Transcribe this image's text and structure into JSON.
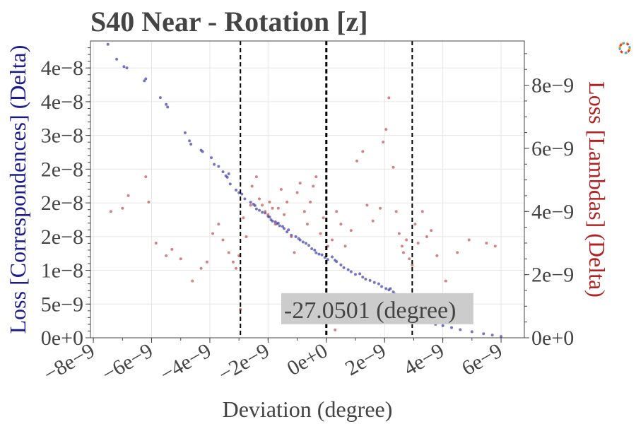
{
  "chart_data": {
    "type": "scatter",
    "title": "S40 Near - Rotation [z]",
    "xlabel": "Deviation (degree)",
    "ylabel_left": "Loss [Correspondences] (Delta)",
    "ylabel_right": "Loss [Lambdas] (Delta)",
    "xlim": [
      -8.1e-09,
      6.8e-09
    ],
    "ylim_left": [
      0,
      4.4e-08
    ],
    "ylim_right": [
      0,
      9.4e-09
    ],
    "x_tick_values": [
      -8e-09,
      -6e-09,
      -4e-09,
      -2e-09,
      0,
      2e-09,
      4e-09,
      6e-09
    ],
    "x_tick_labels": [
      "−8e−9",
      "−6e−9",
      "−4e−9",
      "−2e−9",
      "0e+0",
      "2e−9",
      "4e−9",
      "6e−9"
    ],
    "y_left_tick_values": [
      0,
      5e-09,
      1e-08,
      1.5e-08,
      2e-08,
      2.5e-08,
      3e-08,
      3.5e-08,
      4e-08
    ],
    "y_left_tick_labels": [
      "0e+0",
      "5e−9",
      "1e−8",
      "2e−8",
      "2e−8",
      "2e−8",
      "3e−8",
      "4e−8",
      "4e−8"
    ],
    "y_right_tick_values": [
      0,
      2e-09,
      4e-09,
      6e-09,
      8e-09
    ],
    "y_right_tick_labels": [
      "0e+0",
      "2e−9",
      "4e−9",
      "6e−9",
      "8e−9"
    ],
    "vlines": [
      {
        "x": -2.95e-09,
        "style": "dashed"
      },
      {
        "x": 0,
        "style": "dashed-bold"
      },
      {
        "x": 2.95e-09,
        "style": "dashed"
      }
    ],
    "annotation": {
      "text": "-27.0501 (degree)",
      "x": 1.75e-09,
      "y": 4e-09
    },
    "grid": true,
    "series": [
      {
        "axis": "left",
        "color": "#3a3aa8",
        "points": [
          [
            -7.5,
            43.5
          ],
          [
            -7.2,
            41.3
          ],
          [
            -6.95,
            40.2
          ],
          [
            -6.85,
            40.0
          ],
          [
            -6.25,
            38.1
          ],
          [
            -6.2,
            38.4
          ],
          [
            -5.7,
            35.6
          ],
          [
            -5.5,
            34.6
          ],
          [
            -5.45,
            34.2
          ],
          [
            -4.85,
            30.4
          ],
          [
            -4.7,
            29.2
          ],
          [
            -4.65,
            28.7
          ],
          [
            -4.3,
            27.8
          ],
          [
            -4.25,
            27.6
          ],
          [
            -3.95,
            26.7
          ],
          [
            -3.85,
            25.7
          ],
          [
            -3.7,
            25.4
          ],
          [
            -3.55,
            24.6
          ],
          [
            -3.45,
            24.0
          ],
          [
            -3.4,
            23.8
          ],
          [
            -3.35,
            24.3
          ],
          [
            -3.3,
            22.8
          ],
          [
            -3.1,
            21.9
          ],
          [
            -3.0,
            21.5
          ],
          [
            -2.9,
            21.3
          ],
          [
            -2.8,
            20.6
          ],
          [
            -2.6,
            20.1
          ],
          [
            -2.5,
            19.8
          ],
          [
            -2.45,
            19.6
          ],
          [
            -2.4,
            19.1
          ],
          [
            -2.3,
            18.9
          ],
          [
            -2.2,
            18.6
          ],
          [
            -2.1,
            18.5
          ],
          [
            -2.0,
            18.0
          ],
          [
            -1.95,
            17.9
          ],
          [
            -1.9,
            17.5
          ],
          [
            -1.85,
            17.3
          ],
          [
            -1.75,
            17.2
          ],
          [
            -1.7,
            16.9
          ],
          [
            -1.65,
            17.0
          ],
          [
            -1.6,
            16.6
          ],
          [
            -1.5,
            16.5
          ],
          [
            -1.45,
            16.2
          ],
          [
            -1.35,
            15.7
          ],
          [
            -1.3,
            16.0
          ],
          [
            -1.2,
            15.2
          ],
          [
            -1.05,
            15.0
          ],
          [
            -0.95,
            14.7
          ],
          [
            -0.9,
            14.5
          ],
          [
            -0.8,
            14.2
          ],
          [
            -0.7,
            14.0
          ],
          [
            -0.6,
            13.7
          ],
          [
            -0.5,
            13.2
          ],
          [
            -0.4,
            13.0
          ],
          [
            -0.35,
            12.6
          ],
          [
            -0.25,
            12.4
          ],
          [
            -0.15,
            12.3
          ],
          [
            -0.05,
            11.9
          ],
          [
            0.05,
            11.6
          ],
          [
            0.2,
            12.0
          ],
          [
            0.3,
            11.5
          ],
          [
            0.35,
            11.3
          ],
          [
            0.5,
            10.8
          ],
          [
            0.6,
            10.4
          ],
          [
            0.75,
            10.1
          ],
          [
            0.85,
            9.8
          ],
          [
            1.0,
            9.4
          ],
          [
            1.15,
            9.5
          ],
          [
            1.25,
            9.0
          ],
          [
            1.35,
            8.7
          ],
          [
            1.5,
            8.5
          ],
          [
            1.65,
            8.2
          ],
          [
            1.8,
            8.0
          ],
          [
            1.9,
            7.6
          ],
          [
            2.05,
            7.3
          ],
          [
            2.15,
            7.1
          ],
          [
            2.2,
            7.3
          ],
          [
            2.3,
            6.8
          ],
          [
            2.35,
            6.5
          ],
          [
            2.4,
            6.1
          ],
          [
            2.5,
            5.8
          ],
          [
            2.55,
            5.4
          ],
          [
            2.6,
            5.0
          ],
          [
            2.65,
            4.8
          ],
          [
            2.7,
            4.6
          ],
          [
            2.75,
            4.4
          ],
          [
            2.8,
            4.2
          ],
          [
            2.85,
            4.0
          ],
          [
            2.9,
            3.9
          ],
          [
            2.95,
            3.7
          ],
          [
            3.0,
            3.5
          ],
          [
            3.1,
            3.3
          ],
          [
            3.2,
            3.0
          ],
          [
            3.3,
            2.8
          ],
          [
            3.45,
            2.6
          ],
          [
            3.6,
            2.3
          ],
          [
            3.75,
            2.0
          ],
          [
            4.0,
            1.8
          ],
          [
            4.3,
            1.5
          ],
          [
            4.6,
            1.2
          ],
          [
            5.0,
            0.9
          ],
          [
            5.4,
            0.6
          ],
          [
            5.7,
            0.4
          ],
          [
            6.0,
            0.2
          ]
        ]
      },
      {
        "axis": "right",
        "color": "#c0504d",
        "points": [
          [
            -7.4,
            4.0
          ],
          [
            -7.0,
            4.1
          ],
          [
            -6.8,
            4.5
          ],
          [
            -6.2,
            5.1
          ],
          [
            -6.1,
            4.3
          ],
          [
            -5.85,
            3.0
          ],
          [
            -5.5,
            2.6
          ],
          [
            -5.3,
            2.8
          ],
          [
            -5.0,
            2.5
          ],
          [
            -4.6,
            1.8
          ],
          [
            -4.3,
            2.2
          ],
          [
            -4.1,
            2.4
          ],
          [
            -3.9,
            3.3
          ],
          [
            -3.7,
            3.6
          ],
          [
            -3.55,
            3.1
          ],
          [
            -3.35,
            2.7
          ],
          [
            -3.2,
            2.4
          ],
          [
            -3.1,
            2.2
          ],
          [
            -3.0,
            2.6
          ],
          [
            -2.85,
            3.8
          ],
          [
            -2.75,
            3.2
          ],
          [
            -2.6,
            4.2
          ],
          [
            -2.55,
            4.8
          ],
          [
            -2.4,
            5.1
          ],
          [
            -2.3,
            4.4
          ],
          [
            -2.2,
            4.2
          ],
          [
            -2.1,
            4.0
          ],
          [
            -2.0,
            3.9
          ],
          [
            -1.95,
            4.3
          ],
          [
            -1.85,
            4.1
          ],
          [
            -1.75,
            3.6
          ],
          [
            -1.65,
            4.1
          ],
          [
            -1.55,
            4.7
          ],
          [
            -1.45,
            3.9
          ],
          [
            -1.35,
            4.3
          ],
          [
            -1.2,
            3.2
          ],
          [
            -1.1,
            2.7
          ],
          [
            -1.0,
            4.6
          ],
          [
            -0.9,
            4.9
          ],
          [
            -0.75,
            4.0
          ],
          [
            -0.65,
            3.6
          ],
          [
            -0.55,
            4.3
          ],
          [
            -0.45,
            4.8
          ],
          [
            -0.35,
            5.1
          ],
          [
            -0.2,
            3.3
          ],
          [
            -0.1,
            3.8
          ],
          [
            0.05,
            2.9
          ],
          [
            0.2,
            3.1
          ],
          [
            0.35,
            4.0
          ],
          [
            0.5,
            3.6
          ],
          [
            0.65,
            2.9
          ],
          [
            0.85,
            3.4
          ],
          [
            1.05,
            5.6
          ],
          [
            1.25,
            5.9
          ],
          [
            1.4,
            4.2
          ],
          [
            1.6,
            3.7
          ],
          [
            1.85,
            4.1
          ],
          [
            1.95,
            6.2
          ],
          [
            2.05,
            6.6
          ],
          [
            2.15,
            7.6
          ],
          [
            2.3,
            5.4
          ],
          [
            2.4,
            4.0
          ],
          [
            2.5,
            3.3
          ],
          [
            2.6,
            2.9
          ],
          [
            2.65,
            2.7
          ],
          [
            2.75,
            3.1
          ],
          [
            2.85,
            2.5
          ],
          [
            2.95,
            2.3
          ],
          [
            3.05,
            3.6
          ],
          [
            3.15,
            3.0
          ],
          [
            3.3,
            4.0
          ],
          [
            3.45,
            3.2
          ],
          [
            3.6,
            3.4
          ],
          [
            3.8,
            2.6
          ],
          [
            4.1,
            1.8
          ],
          [
            4.5,
            2.7
          ],
          [
            4.9,
            3.1
          ],
          [
            5.5,
            3.0
          ],
          [
            5.8,
            2.9
          ],
          [
            0.3,
            0.25
          ],
          [
            -2.95,
            0.9
          ]
        ]
      }
    ]
  },
  "legend_icon": "plotly-logo-icon"
}
